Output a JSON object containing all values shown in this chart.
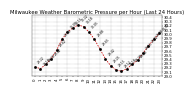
{
  "title": "Milwaukee Weather Barometric Pressure per Hour (Last 24 Hours)",
  "ylim": [
    29.0,
    30.45
  ],
  "xlim": [
    -0.5,
    23.5
  ],
  "hours": [
    0,
    1,
    2,
    3,
    4,
    5,
    6,
    7,
    8,
    9,
    10,
    11,
    12,
    13,
    14,
    15,
    16,
    17,
    18,
    19,
    20,
    21,
    22,
    23
  ],
  "pressure": [
    29.22,
    29.18,
    29.28,
    29.42,
    29.62,
    29.88,
    30.05,
    30.15,
    30.22,
    30.18,
    30.05,
    29.88,
    29.65,
    29.42,
    29.25,
    29.15,
    29.12,
    29.18,
    29.28,
    29.38,
    29.55,
    29.72,
    29.88,
    30.02
  ],
  "line_color": "#cc0000",
  "marker_color": "#000000",
  "bg_color": "#ffffff",
  "grid_color": "#888888",
  "title_fontsize": 3.8,
  "tick_fontsize": 2.8,
  "label_fontsize": 2.2,
  "ytick_values": [
    29.0,
    29.1,
    29.2,
    29.3,
    29.4,
    29.5,
    29.6,
    29.7,
    29.8,
    29.9,
    30.0,
    30.1,
    30.2,
    30.3,
    30.4
  ],
  "vgrid_positions": [
    0,
    2,
    4,
    6,
    8,
    10,
    12,
    14,
    16,
    18,
    20,
    22
  ],
  "dpi": 100
}
